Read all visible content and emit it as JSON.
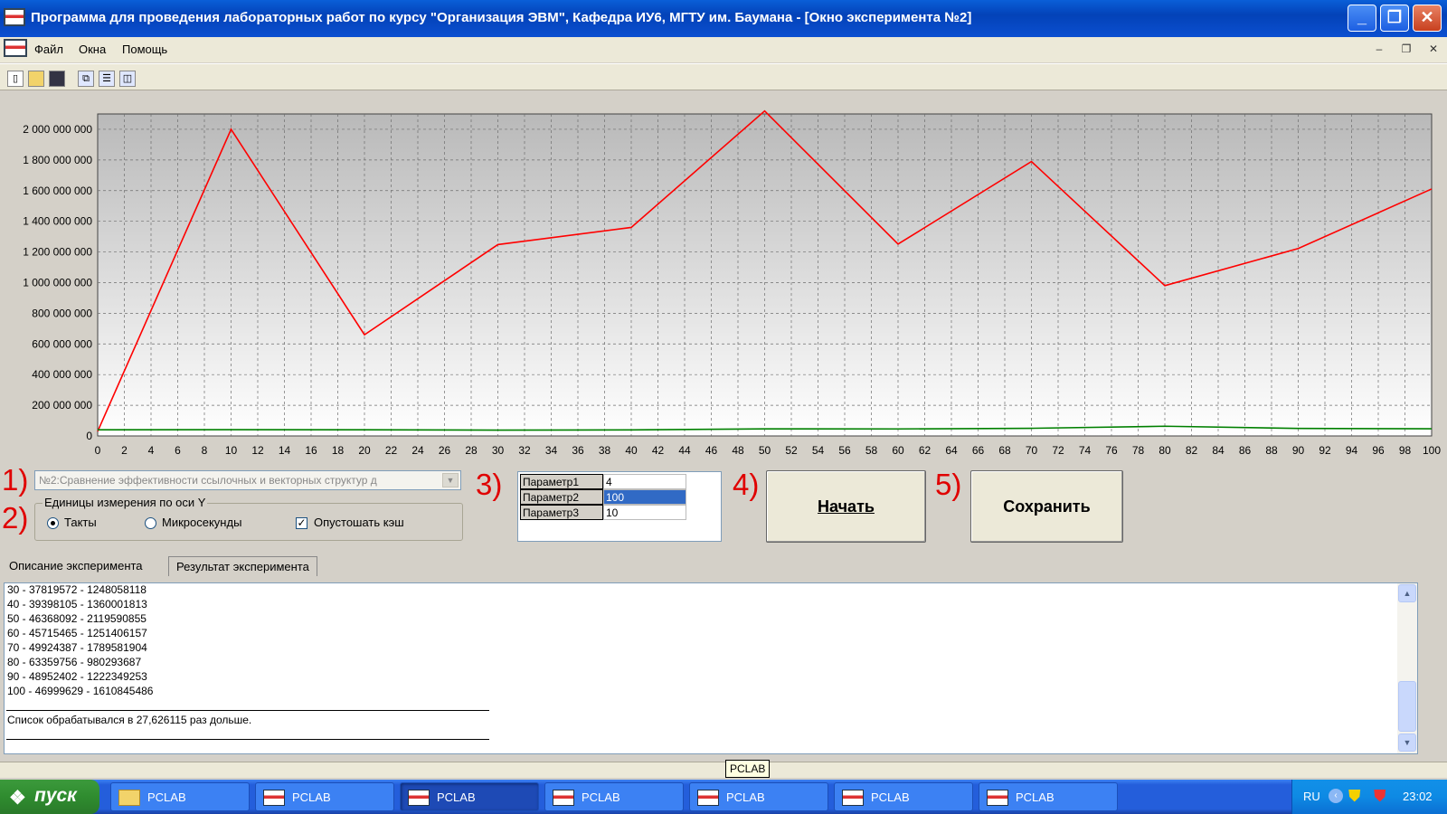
{
  "window": {
    "title": "Программа для проведения лабораторных работ по курсу \"Организация ЭВМ\", Кафедра ИУ6, МГТУ им. Баумана - [Окно эксперимента №2]",
    "buttons": {
      "minimize": "_",
      "maximize": "❐",
      "close": "✕"
    }
  },
  "menu": {
    "items": [
      "Файл",
      "Окна",
      "Помощь"
    ],
    "mdi": {
      "minimize": "–",
      "restore": "❐",
      "close": "✕"
    }
  },
  "toolbar": {
    "icons": [
      "new-file-icon",
      "open-folder-icon",
      "save-icon",
      "cascade-windows-icon",
      "tile-horizontal-icon",
      "tile-vertical-icon"
    ]
  },
  "chart_data": {
    "type": "line",
    "xlim": [
      0,
      100
    ],
    "ylim": [
      0,
      2100000000
    ],
    "x_ticks": [
      0,
      2,
      4,
      6,
      8,
      10,
      12,
      14,
      16,
      18,
      20,
      22,
      24,
      26,
      28,
      30,
      32,
      34,
      36,
      38,
      40,
      42,
      44,
      46,
      48,
      50,
      52,
      54,
      56,
      58,
      60,
      62,
      64,
      66,
      68,
      70,
      72,
      74,
      76,
      78,
      80,
      82,
      84,
      86,
      88,
      90,
      92,
      94,
      96,
      98,
      100
    ],
    "y_ticks": [
      "0",
      "200 000 000",
      "400 000 000",
      "600 000 000",
      "800 000 000",
      "1 000 000 000",
      "1 200 000 000",
      "1 400 000 000",
      "1 600 000 000",
      "1 800 000 000",
      "2 000 000 000"
    ],
    "y_tick_values": [
      0,
      200000000,
      400000000,
      600000000,
      800000000,
      1000000000,
      1200000000,
      1400000000,
      1600000000,
      1800000000,
      2000000000
    ],
    "grid": true,
    "series": [
      {
        "color": "#ff0000",
        "x": [
          0,
          10,
          20,
          30,
          40,
          50,
          60,
          70,
          80,
          90,
          100
        ],
        "y": [
          30000000,
          2000000000,
          660000000,
          1248058118,
          1360001813,
          2119590855,
          1251406157,
          1789581904,
          980293687,
          1222349253,
          1610845486
        ]
      },
      {
        "color": "#008000",
        "x": [
          0,
          10,
          20,
          30,
          40,
          50,
          60,
          70,
          80,
          90,
          100
        ],
        "y": [
          40000000,
          41000000,
          40000000,
          37819572,
          39398105,
          46368092,
          45715465,
          49924387,
          63359756,
          48952402,
          46999629
        ]
      }
    ]
  },
  "controls": {
    "labels": {
      "one": "1)",
      "two": "2)",
      "three": "3)",
      "four": "4)",
      "five": "5)"
    },
    "experiment_combo": "№2:Сравнение эффективности ссылочных и векторных структур д",
    "units_group": {
      "legend": "Единицы измерения по оси Y",
      "ticks": "Такты",
      "micro": "Микросекунды",
      "flush_cache": "Опустошать кэш"
    },
    "params": [
      {
        "name": "Параметр1",
        "value": "4"
      },
      {
        "name": "Параметр2",
        "value": "100"
      },
      {
        "name": "Параметр3",
        "value": "10"
      }
    ],
    "start_button": "Начать",
    "save_button": "Сохранить"
  },
  "tabs": [
    "Описание эксперимента",
    "Результат эксперимента"
  ],
  "output": {
    "lines": [
      "30 - 37819572 - 1248058118",
      "40 - 39398105 - 1360001813",
      "50 - 46368092 - 2119590855",
      "60 - 45715465 - 1251406157",
      "70 - 49924387 - 1789581904",
      "80 - 63359756 - 980293687",
      "90 - 48952402 - 1222349253",
      "100 - 46999629 - 1610845486"
    ],
    "summary": "Список обрабатывался в 27,626115 раз дольше."
  },
  "tooltip": "PCLAB",
  "taskbar": {
    "start": "пуск",
    "tasks": [
      "PCLAB",
      "PCLAB",
      "PCLAB",
      "PCLAB",
      "PCLAB",
      "PCLAB",
      "PCLAB"
    ],
    "tray": {
      "lang": "RU",
      "time": "23:02"
    }
  }
}
